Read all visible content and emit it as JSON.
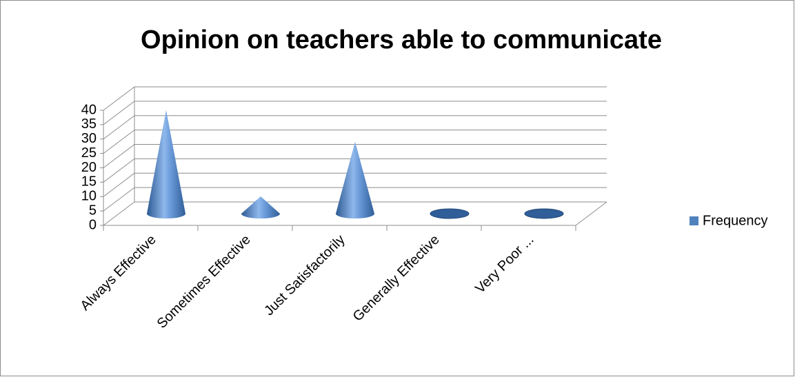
{
  "chart_data": {
    "type": "cone3d",
    "title": "Opinion on teachers able to communicate",
    "categories": [
      "Always Effective",
      "Sometimes Effective",
      "Just Satisfactorily",
      "Generally Effective",
      "Very Poor ..."
    ],
    "series": [
      {
        "name": "Frequency",
        "color": "#4f81bd",
        "values": [
          36,
          6,
          25,
          0,
          0
        ]
      }
    ],
    "ylim": [
      0,
      40
    ],
    "yticks": [
      0,
      5,
      10,
      15,
      20,
      25,
      30,
      35,
      40
    ],
    "grid": true,
    "legend": "right"
  }
}
